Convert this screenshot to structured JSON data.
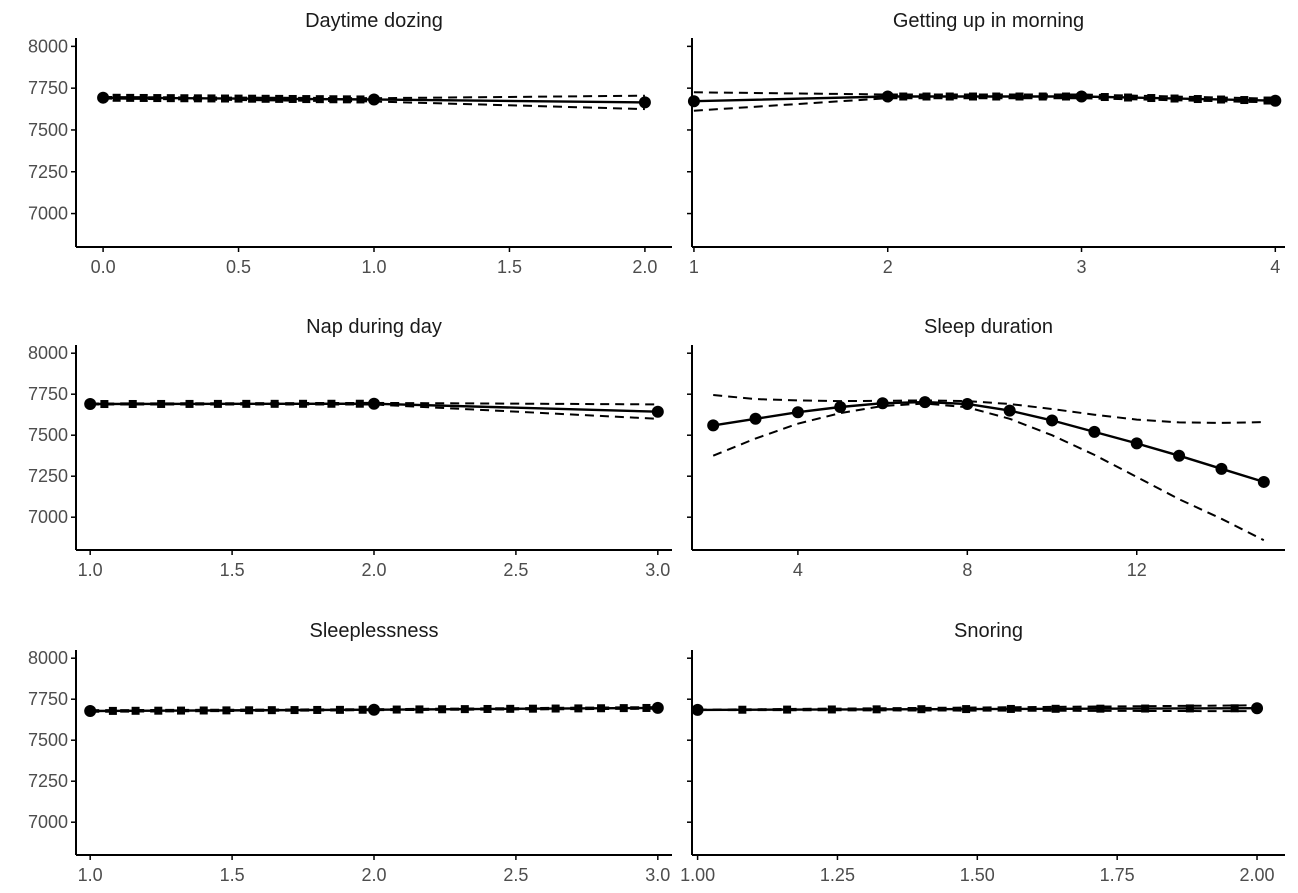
{
  "chart_data": [
    {
      "type": "line",
      "title": "Daytime dozing",
      "xlabel": "",
      "ylabel": "",
      "xlim": [
        -0.1,
        2.1
      ],
      "ylim": [
        6800,
        8050
      ],
      "xticks": [
        0.0,
        0.5,
        1.0,
        1.5,
        2.0
      ],
      "xtick_labels": [
        "0.0",
        "0.5",
        "1.0",
        "1.5",
        "2.0"
      ],
      "yticks": [
        7000,
        7250,
        7500,
        7750,
        8000
      ],
      "ytick_labels": [
        "7000",
        "7250",
        "7500",
        "7750",
        "8000"
      ],
      "show_y_labels": true,
      "grid": false,
      "x": [
        0,
        1,
        2
      ],
      "fit": [
        7693,
        7682,
        7665
      ],
      "lower": [
        7688,
        7670,
        7625
      ],
      "upper": [
        7697,
        7690,
        7705
      ],
      "rug": [
        0.05,
        0.1,
        0.15,
        0.2,
        0.25,
        0.3,
        0.35,
        0.4,
        0.45,
        0.5,
        0.55,
        0.6,
        0.65,
        0.7,
        0.75,
        0.8,
        0.85,
        0.9,
        0.95
      ]
    },
    {
      "type": "line",
      "title": "Getting up in morning",
      "xlabel": "",
      "ylabel": "",
      "xlim": [
        0.99,
        4.05
      ],
      "ylim": [
        6800,
        8050
      ],
      "xticks": [
        1,
        2,
        3,
        4
      ],
      "xtick_labels": [
        "1",
        "2",
        "3",
        "4"
      ],
      "yticks": [
        7000,
        7250,
        7500,
        7750,
        8000
      ],
      "ytick_labels": [
        "7000",
        "7250",
        "7500",
        "7750",
        "8000"
      ],
      "show_y_labels": false,
      "grid": false,
      "x": [
        1,
        2,
        3,
        4
      ],
      "fit": [
        7672,
        7700,
        7700,
        7675
      ],
      "lower": [
        7615,
        7690,
        7690,
        7665
      ],
      "upper": [
        7725,
        7712,
        7712,
        7687
      ],
      "rug": [
        2.08,
        2.2,
        2.32,
        2.44,
        2.56,
        2.68,
        2.8,
        2.92,
        3.12,
        3.24,
        3.36,
        3.48,
        3.6,
        3.72,
        3.84,
        3.96
      ]
    },
    {
      "type": "line",
      "title": "Nap during day",
      "xlabel": "",
      "ylabel": "",
      "xlim": [
        0.95,
        3.05
      ],
      "ylim": [
        6800,
        8050
      ],
      "xticks": [
        1.0,
        1.5,
        2.0,
        2.5,
        3.0
      ],
      "xtick_labels": [
        "1.0",
        "1.5",
        "2.0",
        "2.5",
        "3.0"
      ],
      "yticks": [
        7000,
        7250,
        7500,
        7750,
        8000
      ],
      "ytick_labels": [
        "7000",
        "7250",
        "7500",
        "7750",
        "8000"
      ],
      "show_y_labels": true,
      "grid": false,
      "x": [
        1,
        2,
        3
      ],
      "fit": [
        7690,
        7692,
        7643
      ],
      "lower": [
        7687,
        7687,
        7600
      ],
      "upper": [
        7693,
        7697,
        7688
      ],
      "rug": [
        1.05,
        1.15,
        1.25,
        1.35,
        1.45,
        1.55,
        1.65,
        1.75,
        1.85,
        1.95
      ]
    },
    {
      "type": "line",
      "title": "Sleep duration",
      "xlabel": "",
      "ylabel": "",
      "xlim": [
        1.5,
        15.5
      ],
      "ylim": [
        6800,
        8050
      ],
      "xticks": [
        4,
        8,
        12
      ],
      "xtick_labels": [
        "4",
        "8",
        "12"
      ],
      "yticks": [
        7000,
        7250,
        7500,
        7750,
        8000
      ],
      "ytick_labels": [
        "7000",
        "7250",
        "7500",
        "7750",
        "8000"
      ],
      "show_y_labels": false,
      "grid": false,
      "x": [
        2,
        3,
        4,
        5,
        6,
        7,
        8,
        9,
        10,
        11,
        12,
        13,
        14,
        15
      ],
      "fit": [
        7560,
        7600,
        7640,
        7672,
        7695,
        7702,
        7690,
        7650,
        7590,
        7520,
        7450,
        7375,
        7295,
        7215
      ],
      "lower": [
        7375,
        7480,
        7570,
        7635,
        7678,
        7693,
        7670,
        7600,
        7500,
        7380,
        7245,
        7110,
        6990,
        6860
      ],
      "upper": [
        7745,
        7720,
        7712,
        7708,
        7710,
        7712,
        7708,
        7690,
        7660,
        7625,
        7595,
        7578,
        7575,
        7580
      ],
      "rug": []
    },
    {
      "type": "line",
      "title": "Sleeplessness",
      "xlabel": "",
      "ylabel": "",
      "xlim": [
        0.95,
        3.05
      ],
      "ylim": [
        6800,
        8050
      ],
      "xticks": [
        1.0,
        1.5,
        2.0,
        2.5,
        3.0
      ],
      "xtick_labels": [
        "1.0",
        "1.5",
        "2.0",
        "2.5",
        "3.0"
      ],
      "yticks": [
        7000,
        7250,
        7500,
        7750,
        8000
      ],
      "ytick_labels": [
        "7000",
        "7250",
        "7500",
        "7750",
        "8000"
      ],
      "show_y_labels": true,
      "grid": false,
      "x": [
        1,
        2,
        3
      ],
      "fit": [
        7678,
        7686,
        7697
      ],
      "lower": [
        7673,
        7683,
        7692
      ],
      "upper": [
        7683,
        7689,
        7702
      ],
      "rug": [
        1.08,
        1.16,
        1.24,
        1.32,
        1.4,
        1.48,
        1.56,
        1.64,
        1.72,
        1.8,
        1.88,
        1.96,
        2.08,
        2.16,
        2.24,
        2.32,
        2.4,
        2.48,
        2.56,
        2.64,
        2.72,
        2.8,
        2.88,
        2.96
      ]
    },
    {
      "type": "line",
      "title": "Snoring",
      "xlabel": "",
      "ylabel": "",
      "xlim": [
        0.99,
        2.05
      ],
      "ylim": [
        6800,
        8050
      ],
      "xticks": [
        1.0,
        1.25,
        1.5,
        1.75,
        2.0
      ],
      "xtick_labels": [
        "1.00",
        "1.25",
        "1.50",
        "1.75",
        "2.00"
      ],
      "yticks": [
        7000,
        7250,
        7500,
        7750,
        8000
      ],
      "ytick_labels": [
        "7000",
        "7250",
        "7500",
        "7750",
        "8000"
      ],
      "show_y_labels": false,
      "grid": false,
      "x": [
        1,
        2
      ],
      "fit": [
        7685,
        7695
      ],
      "lower": [
        7684,
        7677
      ],
      "upper": [
        7686,
        7713
      ],
      "rug": [
        1.08,
        1.16,
        1.24,
        1.32,
        1.4,
        1.48,
        1.56,
        1.64,
        1.72,
        1.8,
        1.88,
        1.96
      ]
    }
  ]
}
